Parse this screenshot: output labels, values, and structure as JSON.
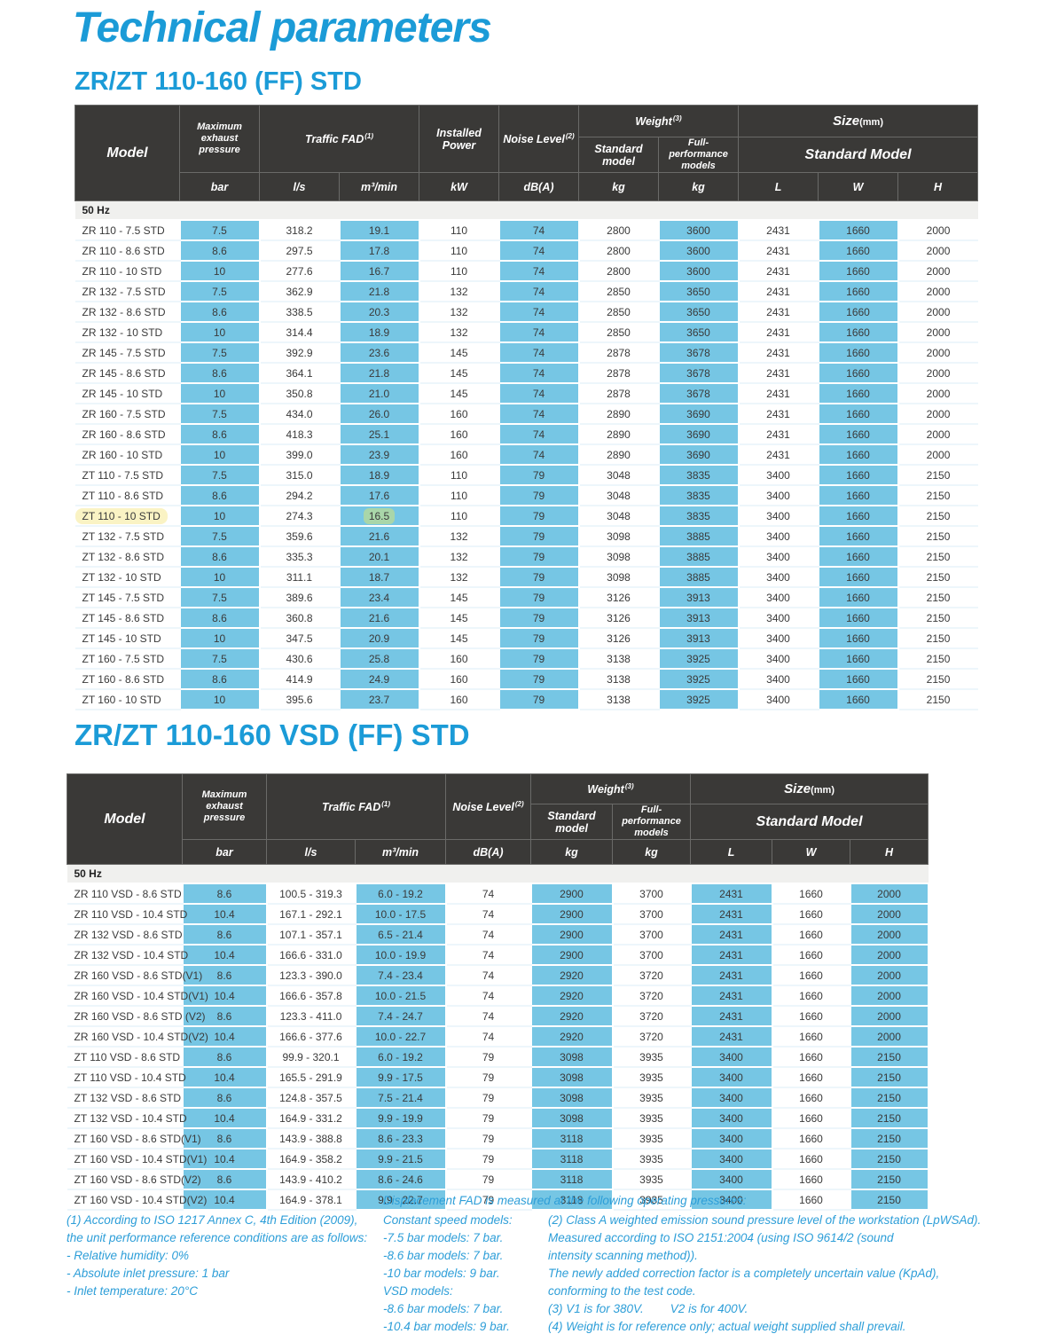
{
  "theme": {
    "accent_color": "#1B9BD7",
    "cell_blue": "#76C6E4",
    "header_bg": "#3A3937",
    "freq_row_bg": "#F0F0EE",
    "footnote_color": "#2D9ED8",
    "highlight_yellow": "#FAF3C4",
    "highlight_green": "#A9D6A9"
  },
  "page": {
    "title": "Technical parameters"
  },
  "table1": {
    "title": "ZR/ZT 110-160 (FF) STD",
    "frequency_section": "50 Hz",
    "header": {
      "model": "Model",
      "max_exhaust_pressure": "Maximum exhaust pressure",
      "traffic_fad": "Traffic FAD",
      "traffic_fad_sup": "(1)",
      "installed_power": "Installed Power",
      "noise_level": "Noise Level",
      "noise_level_sup": "(2)",
      "weight": "Weight",
      "weight_sup": "(3)",
      "weight_standard": "Standard model",
      "weight_full": "Full-performance models",
      "size": "Size",
      "size_unit": "(mm)",
      "size_standard": "Standard Model",
      "units": [
        "bar",
        "l/s",
        "m³/min",
        "kW",
        "dB(A)",
        "kg",
        "kg",
        "L",
        "W",
        "H"
      ]
    },
    "highlight": {
      "row_index": 14,
      "value_index": 2
    },
    "rows": [
      {
        "model": "ZR 110 - 7.5 STD",
        "values": [
          "7.5",
          "318.2",
          "19.1",
          "110",
          "74",
          "2800",
          "3600",
          "2431",
          "1660",
          "2000"
        ]
      },
      {
        "model": "ZR 110 - 8.6 STD",
        "values": [
          "8.6",
          "297.5",
          "17.8",
          "110",
          "74",
          "2800",
          "3600",
          "2431",
          "1660",
          "2000"
        ]
      },
      {
        "model": "ZR 110 - 10 STD",
        "values": [
          "10",
          "277.6",
          "16.7",
          "110",
          "74",
          "2800",
          "3600",
          "2431",
          "1660",
          "2000"
        ]
      },
      {
        "model": "ZR 132 - 7.5 STD",
        "values": [
          "7.5",
          "362.9",
          "21.8",
          "132",
          "74",
          "2850",
          "3650",
          "2431",
          "1660",
          "2000"
        ]
      },
      {
        "model": "ZR 132 - 8.6 STD",
        "values": [
          "8.6",
          "338.5",
          "20.3",
          "132",
          "74",
          "2850",
          "3650",
          "2431",
          "1660",
          "2000"
        ]
      },
      {
        "model": "ZR 132 - 10 STD",
        "values": [
          "10",
          "314.4",
          "18.9",
          "132",
          "74",
          "2850",
          "3650",
          "2431",
          "1660",
          "2000"
        ]
      },
      {
        "model": "ZR 145 - 7.5 STD",
        "values": [
          "7.5",
          "392.9",
          "23.6",
          "145",
          "74",
          "2878",
          "3678",
          "2431",
          "1660",
          "2000"
        ]
      },
      {
        "model": "ZR 145 - 8.6 STD",
        "values": [
          "8.6",
          "364.1",
          "21.8",
          "145",
          "74",
          "2878",
          "3678",
          "2431",
          "1660",
          "2000"
        ]
      },
      {
        "model": "ZR 145 - 10 STD",
        "values": [
          "10",
          "350.8",
          "21.0",
          "145",
          "74",
          "2878",
          "3678",
          "2431",
          "1660",
          "2000"
        ]
      },
      {
        "model": "ZR 160 - 7.5 STD",
        "values": [
          "7.5",
          "434.0",
          "26.0",
          "160",
          "74",
          "2890",
          "3690",
          "2431",
          "1660",
          "2000"
        ]
      },
      {
        "model": "ZR 160 - 8.6 STD",
        "values": [
          "8.6",
          "418.3",
          "25.1",
          "160",
          "74",
          "2890",
          "3690",
          "2431",
          "1660",
          "2000"
        ]
      },
      {
        "model": "ZR 160 - 10 STD",
        "values": [
          "10",
          "399.0",
          "23.9",
          "160",
          "74",
          "2890",
          "3690",
          "2431",
          "1660",
          "2000"
        ]
      },
      {
        "model": "ZT 110 - 7.5 STD",
        "values": [
          "7.5",
          "315.0",
          "18.9",
          "110",
          "79",
          "3048",
          "3835",
          "3400",
          "1660",
          "2150"
        ]
      },
      {
        "model": "ZT 110 - 8.6 STD",
        "values": [
          "8.6",
          "294.2",
          "17.6",
          "110",
          "79",
          "3048",
          "3835",
          "3400",
          "1660",
          "2150"
        ]
      },
      {
        "model": "ZT 110 - 10 STD",
        "values": [
          "10",
          "274.3",
          "16.5",
          "110",
          "79",
          "3048",
          "3835",
          "3400",
          "1660",
          "2150"
        ]
      },
      {
        "model": "ZT 132 - 7.5 STD",
        "values": [
          "7.5",
          "359.6",
          "21.6",
          "132",
          "79",
          "3098",
          "3885",
          "3400",
          "1660",
          "2150"
        ]
      },
      {
        "model": "ZT 132 - 8.6 STD",
        "values": [
          "8.6",
          "335.3",
          "20.1",
          "132",
          "79",
          "3098",
          "3885",
          "3400",
          "1660",
          "2150"
        ]
      },
      {
        "model": "ZT 132 - 10 STD",
        "values": [
          "10",
          "311.1",
          "18.7",
          "132",
          "79",
          "3098",
          "3885",
          "3400",
          "1660",
          "2150"
        ]
      },
      {
        "model": "ZT 145 - 7.5 STD",
        "values": [
          "7.5",
          "389.6",
          "23.4",
          "145",
          "79",
          "3126",
          "3913",
          "3400",
          "1660",
          "2150"
        ]
      },
      {
        "model": "ZT 145 - 8.6 STD",
        "values": [
          "8.6",
          "360.8",
          "21.6",
          "145",
          "79",
          "3126",
          "3913",
          "3400",
          "1660",
          "2150"
        ]
      },
      {
        "model": "ZT 145 - 10 STD",
        "values": [
          "10",
          "347.5",
          "20.9",
          "145",
          "79",
          "3126",
          "3913",
          "3400",
          "1660",
          "2150"
        ]
      },
      {
        "model": "ZT 160 - 7.5 STD",
        "values": [
          "7.5",
          "430.6",
          "25.8",
          "160",
          "79",
          "3138",
          "3925",
          "3400",
          "1660",
          "2150"
        ]
      },
      {
        "model": "ZT 160 - 8.6 STD",
        "values": [
          "8.6",
          "414.9",
          "24.9",
          "160",
          "79",
          "3138",
          "3925",
          "3400",
          "1660",
          "2150"
        ]
      },
      {
        "model": "ZT 160 - 10 STD",
        "values": [
          "10",
          "395.6",
          "23.7",
          "160",
          "79",
          "3138",
          "3925",
          "3400",
          "1660",
          "2150"
        ]
      }
    ]
  },
  "table2": {
    "title": "ZR/ZT 110-160 VSD (FF) STD",
    "frequency_section": "50 Hz",
    "header": {
      "model": "Model",
      "max_exhaust_pressure": "Maximum exhaust pressure",
      "traffic_fad": "Traffic FAD",
      "traffic_fad_sup": "(1)",
      "noise_level": "Noise Level",
      "noise_level_sup": "(2)",
      "weight": "Weight",
      "weight_sup": "(3)",
      "weight_standard": "Standard model",
      "weight_full": "Full-performance models",
      "size": "Size",
      "size_unit": "(mm)",
      "size_standard": "Standard Model",
      "units": [
        "bar",
        "l/s",
        "m³/min",
        "dB(A)",
        "kg",
        "kg",
        "L",
        "W",
        "H"
      ]
    },
    "rows": [
      {
        "model": "ZR 110 VSD - 8.6 STD",
        "values": [
          "8.6",
          "100.5 - 319.3",
          "6.0 - 19.2",
          "74",
          "2900",
          "3700",
          "2431",
          "1660",
          "2000"
        ]
      },
      {
        "model": "ZR 110 VSD - 10.4 STD",
        "values": [
          "10.4",
          "167.1 - 292.1",
          "10.0 - 17.5",
          "74",
          "2900",
          "3700",
          "2431",
          "1660",
          "2000"
        ]
      },
      {
        "model": "ZR 132 VSD - 8.6 STD",
        "values": [
          "8.6",
          "107.1 - 357.1",
          "6.5 - 21.4",
          "74",
          "2900",
          "3700",
          "2431",
          "1660",
          "2000"
        ]
      },
      {
        "model": "ZR 132 VSD - 10.4 STD",
        "values": [
          "10.4",
          "166.6 - 331.0",
          "10.0 - 19.9",
          "74",
          "2900",
          "3700",
          "2431",
          "1660",
          "2000"
        ]
      },
      {
        "model": "ZR 160 VSD - 8.6 STD(V1)",
        "values": [
          "8.6",
          "123.3 - 390.0",
          "7.4 - 23.4",
          "74",
          "2920",
          "3720",
          "2431",
          "1660",
          "2000"
        ]
      },
      {
        "model": "ZR 160 VSD - 10.4 STD(V1)",
        "values": [
          "10.4",
          "166.6 - 357.8",
          "10.0 - 21.5",
          "74",
          "2920",
          "3720",
          "2431",
          "1660",
          "2000"
        ]
      },
      {
        "model": "ZR 160 VSD - 8.6 STD (V2)",
        "values": [
          "8.6",
          "123.3 - 411.0",
          "7.4 - 24.7",
          "74",
          "2920",
          "3720",
          "2431",
          "1660",
          "2000"
        ]
      },
      {
        "model": "ZR 160 VSD - 10.4 STD(V2)",
        "values": [
          "10.4",
          "166.6 - 377.6",
          "10.0 - 22.7",
          "74",
          "2920",
          "3720",
          "2431",
          "1660",
          "2000"
        ]
      },
      {
        "model": "ZT 110 VSD - 8.6 STD",
        "values": [
          "8.6",
          "99.9 - 320.1",
          "6.0 - 19.2",
          "79",
          "3098",
          "3935",
          "3400",
          "1660",
          "2150"
        ]
      },
      {
        "model": "ZT 110 VSD - 10.4 STD",
        "values": [
          "10.4",
          "165.5 - 291.9",
          "9.9 - 17.5",
          "79",
          "3098",
          "3935",
          "3400",
          "1660",
          "2150"
        ]
      },
      {
        "model": "ZT 132 VSD - 8.6 STD",
        "values": [
          "8.6",
          "124.8 - 357.5",
          "7.5 - 21.4",
          "79",
          "3098",
          "3935",
          "3400",
          "1660",
          "2150"
        ]
      },
      {
        "model": "ZT 132 VSD - 10.4 STD",
        "values": [
          "10.4",
          "164.9 - 331.2",
          "9.9 - 19.9",
          "79",
          "3098",
          "3935",
          "3400",
          "1660",
          "2150"
        ]
      },
      {
        "model": "ZT 160 VSD - 8.6 STD(V1)",
        "values": [
          "8.6",
          "143.9 - 388.8",
          "8.6 - 23.3",
          "79",
          "3118",
          "3935",
          "3400",
          "1660",
          "2150"
        ]
      },
      {
        "model": "ZT 160 VSD - 10.4 STD(V1)",
        "values": [
          "10.4",
          "164.9 - 358.2",
          "9.9 - 21.5",
          "79",
          "3118",
          "3935",
          "3400",
          "1660",
          "2150"
        ]
      },
      {
        "model": "ZT 160 VSD - 8.6 STD(V2)",
        "values": [
          "8.6",
          "143.9 - 410.2",
          "8.6 - 24.6",
          "79",
          "3118",
          "3935",
          "3400",
          "1660",
          "2150"
        ]
      },
      {
        "model": "ZT 160 VSD - 10.4 STD(V2)",
        "values": [
          "10.4",
          "164.9 - 378.1",
          "9.9 - 22.7",
          "79",
          "3118",
          "3935",
          "3400",
          "1660",
          "2150"
        ]
      }
    ]
  },
  "footnotes": {
    "fad_header": "Displacement FAD is measured at the following operating pressures:",
    "col1": [
      "(1) According to ISO 1217 Annex C, 4th Edition (2009),",
      "the unit performance reference conditions are as follows:",
      "- Relative humidity: 0%",
      "- Absolute inlet pressure: 1 bar",
      "- Inlet temperature: 20°C"
    ],
    "col2": [
      "Constant speed models:",
      "-7.5 bar models: 7 bar.",
      "-8.6 bar models: 7 bar.",
      "-10 bar models: 9 bar.",
      "VSD models:",
      "-8.6 bar models: 7 bar.",
      "-10.4 bar models: 9 bar."
    ],
    "col3": [
      "(2) Class A weighted emission sound pressure level of the workstation (LpWSAd).",
      "Measured according to ISO 2151:2004 (using ISO 9614/2 (sound",
      "intensity scanning method)).",
      "The newly added correction factor is a completely uncertain value (KpAd),",
      "conforming to the test code.",
      "(3) V1 is for 380V.        V2 is for 400V.",
      "(4) Weight is for reference only; actual weight supplied shall prevail."
    ]
  }
}
